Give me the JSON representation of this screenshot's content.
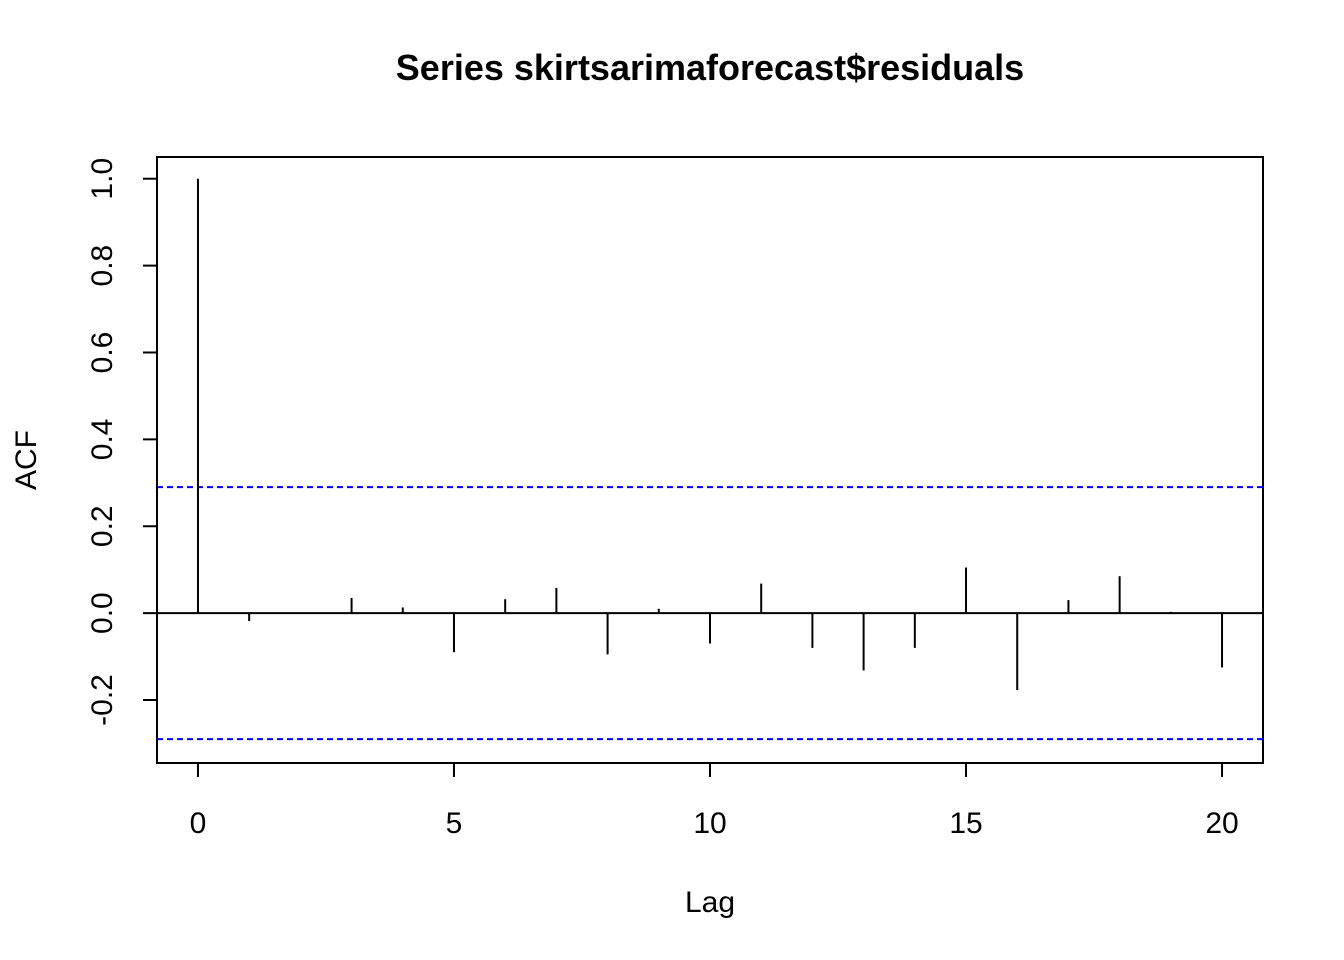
{
  "chart_data": {
    "type": "bar",
    "subtype": "acf-stem",
    "title": "Series  skirtsarimaforecast$residuals",
    "xlabel": "Lag",
    "ylabel": "ACF",
    "xlim": [
      -0.8,
      20.8
    ],
    "ylim": [
      -0.345,
      1.05
    ],
    "x_ticks": [
      0,
      5,
      10,
      15,
      20
    ],
    "x_tick_labels": [
      "0",
      "5",
      "10",
      "15",
      "20"
    ],
    "y_ticks": [
      -0.2,
      0.0,
      0.2,
      0.4,
      0.6,
      0.8,
      1.0
    ],
    "y_tick_labels": [
      "-0.2",
      "0.0",
      "0.2",
      "0.4",
      "0.6",
      "0.8",
      "1.0"
    ],
    "lags": [
      0,
      1,
      2,
      3,
      4,
      5,
      6,
      7,
      8,
      9,
      10,
      11,
      12,
      13,
      14,
      15,
      16,
      17,
      18,
      19,
      20
    ],
    "values": [
      1.0,
      -0.018,
      0.001,
      0.035,
      0.013,
      -0.09,
      0.032,
      0.058,
      -0.095,
      0.01,
      -0.07,
      0.068,
      -0.08,
      -0.132,
      -0.08,
      0.105,
      -0.177,
      0.03,
      0.085,
      0.003,
      -0.125
    ],
    "confidence_bound": 0.29,
    "confidence_color": "#0000ff",
    "series_color": "#000000",
    "zero_line": true,
    "grid": false,
    "legend": "none"
  }
}
